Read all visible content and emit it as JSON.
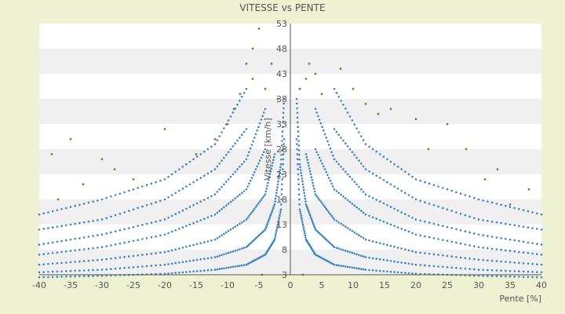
{
  "chart_data": {
    "type": "scatter",
    "title": "VITESSE vs PENTE",
    "xlabel": "Pente [%]",
    "ylabel": "Vitesse [km/h]",
    "xlim": [
      -40,
      40
    ],
    "ylim": [
      3,
      53
    ],
    "x_ticks": [
      -40,
      -35,
      -30,
      -25,
      -20,
      -15,
      -10,
      -5,
      0,
      5,
      10,
      15,
      20,
      25,
      30,
      35,
      40
    ],
    "y_ticks": [
      3,
      8,
      13,
      18,
      23,
      28,
      33,
      38,
      43,
      48,
      53
    ],
    "grid": "horizontal bands",
    "legend": "none",
    "colors": {
      "background": "#eef2d3",
      "plot_band_light": "#ffffff",
      "plot_band_dark": "#f0f0f0",
      "primary_points": "#3d85c6",
      "secondary_points": "#7f7f2a",
      "axis": "#555555"
    },
    "series": [
      {
        "marker_color": "#3d85c6",
        "curves": [
          {
            "x": [
              -40,
              -30,
              -20,
              -12,
              -7,
              -4,
              -2.5,
              -1.5,
              -1
            ],
            "y": [
              2.5,
              2.8,
              3.2,
              4,
              5,
              7,
              10,
              16,
              30
            ]
          },
          {
            "x": [
              -40,
              -30,
              -20,
              -12,
              -7,
              -4,
              -2.5,
              -1.5,
              -1
            ],
            "y": [
              3.5,
              4,
              5,
              6.5,
              8.5,
              12,
              17,
              25,
              38
            ]
          },
          {
            "x": [
              -40,
              -30,
              -20,
              -12,
              -7,
              -4,
              -2.5
            ],
            "y": [
              5,
              6,
              7.5,
              10,
              14,
              19,
              27
            ]
          },
          {
            "x": [
              -40,
              -30,
              -20,
              -12,
              -7,
              -4
            ],
            "y": [
              7,
              8.5,
              11,
              15,
              20,
              28
            ]
          },
          {
            "x": [
              -40,
              -30,
              -20,
              -12,
              -7,
              -4
            ],
            "y": [
              9,
              11,
              14,
              19,
              26,
              36
            ]
          },
          {
            "x": [
              -40,
              -30,
              -20,
              -12,
              -7
            ],
            "y": [
              12,
              14,
              18,
              24,
              32
            ]
          },
          {
            "x": [
              -40,
              -30,
              -20,
              -12,
              -7
            ],
            "y": [
              15,
              18,
              22,
              29,
              40
            ]
          },
          {
            "x": [
              1,
              1.5,
              2.5,
              4,
              7,
              12,
              20,
              30,
              40
            ],
            "y": [
              30,
              16,
              10,
              7,
              5,
              4,
              3.2,
              2.8,
              2.5
            ]
          },
          {
            "x": [
              1,
              1.5,
              2.5,
              4,
              7,
              12,
              20,
              30,
              40
            ],
            "y": [
              38,
              25,
              17,
              12,
              8.5,
              6.5,
              5,
              4,
              3.5
            ]
          },
          {
            "x": [
              2.5,
              4,
              7,
              12,
              20,
              30,
              40
            ],
            "y": [
              27,
              19,
              14,
              10,
              7.5,
              6,
              5
            ]
          },
          {
            "x": [
              4,
              7,
              12,
              20,
              30,
              40
            ],
            "y": [
              28,
              20,
              15,
              11,
              8.5,
              7
            ]
          },
          {
            "x": [
              4,
              7,
              12,
              20,
              30,
              40
            ],
            "y": [
              36,
              26,
              19,
              14,
              11,
              9
            ]
          },
          {
            "x": [
              7,
              12,
              20,
              30,
              40
            ],
            "y": [
              32,
              24,
              18,
              14,
              12
            ]
          },
          {
            "x": [
              7,
              12,
              20,
              30,
              40
            ],
            "y": [
              40,
              29,
              22,
              18,
              15
            ]
          }
        ]
      },
      {
        "marker_color": "#7f7f2a",
        "points": [
          [
            -5,
            52
          ],
          [
            -6,
            48
          ],
          [
            -7,
            45
          ],
          [
            -8,
            39
          ],
          [
            -9,
            36
          ],
          [
            -10,
            33
          ],
          [
            -20,
            32
          ],
          [
            -35,
            30
          ],
          [
            -38,
            27
          ],
          [
            -30,
            26
          ],
          [
            -28,
            24
          ],
          [
            -15,
            27
          ],
          [
            -25,
            22
          ],
          [
            -33,
            21
          ],
          [
            -37,
            18
          ],
          [
            -12,
            30
          ],
          [
            -6,
            42
          ],
          [
            -3,
            45
          ],
          [
            -4,
            40
          ],
          [
            -2,
            38
          ],
          [
            -4.5,
            3
          ],
          [
            3,
            45
          ],
          [
            4,
            43
          ],
          [
            8,
            44
          ],
          [
            10,
            40
          ],
          [
            12,
            37
          ],
          [
            14,
            35
          ],
          [
            16,
            36
          ],
          [
            20,
            34
          ],
          [
            25,
            33
          ],
          [
            28,
            28
          ],
          [
            33,
            24
          ],
          [
            38,
            20
          ],
          [
            5,
            39
          ],
          [
            2,
            3
          ],
          [
            2.5,
            42
          ],
          [
            1.5,
            40
          ],
          [
            31,
            22
          ],
          [
            35,
            17
          ],
          [
            22,
            28
          ]
        ]
      }
    ]
  }
}
